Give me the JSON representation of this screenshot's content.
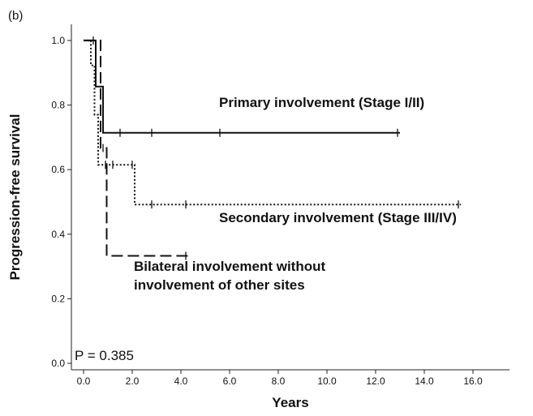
{
  "chart_data": {
    "type": "line",
    "subtype": "kaplan-meier",
    "panel_label": "(b)",
    "title": "",
    "xlabel": "Years",
    "ylabel": "Progression-free survival",
    "xlim": [
      -0.5,
      17.5
    ],
    "ylim": [
      -0.02,
      1.05
    ],
    "x_ticks": [
      0.0,
      2.0,
      4.0,
      6.0,
      8.0,
      10.0,
      12.0,
      14.0,
      16.0
    ],
    "x_tick_labels": [
      "0.0",
      "2.0",
      "4.0",
      "6.0",
      "8.0",
      "10.0",
      "12.0",
      "14.0",
      "16.0"
    ],
    "y_ticks": [
      0.0,
      0.2,
      0.4,
      0.6,
      0.8,
      1.0
    ],
    "y_tick_labels": [
      "0.0",
      "0.2",
      "0.4",
      "0.6",
      "0.8",
      "1.0"
    ],
    "grid": false,
    "pvalue_text": "P = 0.385",
    "series": [
      {
        "style": "solid",
        "label_lines": [
          "Primary involvement (Stage I/II)"
        ],
        "steps": [
          [
            0.0,
            1.0
          ],
          [
            0.5,
            0.857
          ],
          [
            0.8,
            0.714
          ],
          [
            13.0,
            0.714
          ]
        ],
        "censor_x": [
          0.4,
          1.5,
          2.8,
          5.6,
          12.9
        ]
      },
      {
        "style": "dotted",
        "label_lines": [
          "Secondary involvement (Stage III/IV)"
        ],
        "steps": [
          [
            0.0,
            1.0
          ],
          [
            0.3,
            0.923
          ],
          [
            0.45,
            0.77
          ],
          [
            0.6,
            0.615
          ],
          [
            2.1,
            0.492
          ],
          [
            15.5,
            0.492
          ]
        ],
        "censor_x": [
          0.9,
          1.2,
          2.0,
          2.8,
          4.2,
          15.4
        ]
      },
      {
        "style": "dashed",
        "label_lines": [
          "Bilateral involvement without",
          "involvement of other sites"
        ],
        "steps": [
          [
            0.0,
            1.0
          ],
          [
            0.7,
            0.667
          ],
          [
            0.95,
            0.333
          ],
          [
            4.3,
            0.333
          ]
        ],
        "censor_x": [
          0.8,
          4.2
        ]
      }
    ]
  }
}
